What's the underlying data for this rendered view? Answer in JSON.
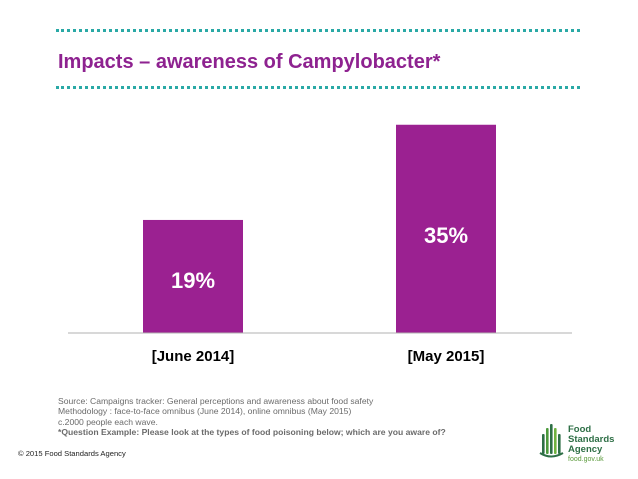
{
  "title": "Impacts – awareness of Campylobacter*",
  "colors": {
    "accent": "#8e2290",
    "bar": "#9b2191",
    "dots": "#2aa9a6"
  },
  "chart_data": {
    "type": "bar",
    "categories": [
      "[June 2014]",
      "[May 2015]"
    ],
    "values": [
      19,
      35
    ],
    "data_labels": [
      "19%",
      "35%"
    ],
    "ylim": [
      0,
      40
    ]
  },
  "notes": {
    "source": "Source: Campaigns tracker: General perceptions and awareness about food safety",
    "methodology": "Methodology : face-to-face omnibus (June 2014), online omnibus (May 2015)",
    "sample": "c.2000 people each wave.",
    "question": "*Question Example: Please look at the types of food poisoning below; which are you aware of?"
  },
  "copyright": "© 2015 Food Standards Agency",
  "logo": {
    "line1": "Food",
    "line2": "Standards",
    "line3": "Agency",
    "url": "food.gov.uk"
  }
}
